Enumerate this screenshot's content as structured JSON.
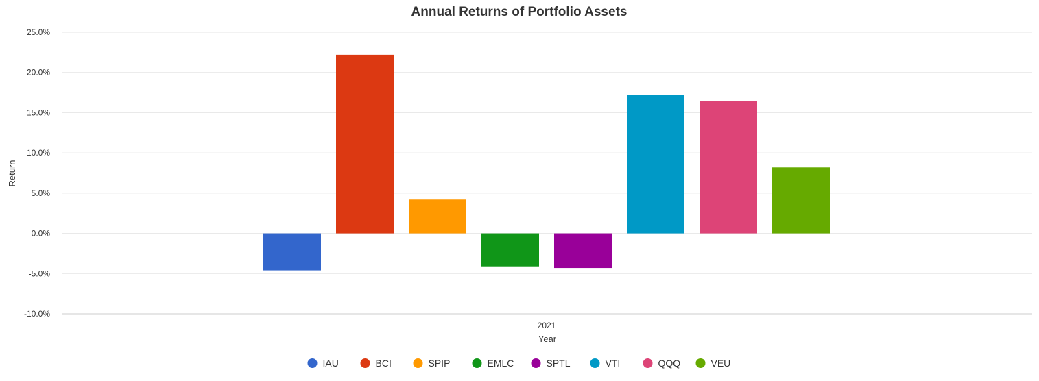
{
  "chart_data": {
    "type": "bar",
    "title": "Annual Returns of Portfolio Assets",
    "xlabel": "Year",
    "ylabel": "Return",
    "categories": [
      "2021"
    ],
    "series": [
      {
        "name": "IAU",
        "color": "#3366cc",
        "values": [
          -4.6
        ]
      },
      {
        "name": "BCI",
        "color": "#dc3912",
        "values": [
          22.2
        ]
      },
      {
        "name": "SPIP",
        "color": "#ff9900",
        "values": [
          4.2
        ]
      },
      {
        "name": "EMLC",
        "color": "#109618",
        "values": [
          -4.1
        ]
      },
      {
        "name": "SPTL",
        "color": "#990099",
        "values": [
          -4.3
        ]
      },
      {
        "name": "VTI",
        "color": "#0099c6",
        "values": [
          17.2
        ]
      },
      {
        "name": "QQQ",
        "color": "#dd4477",
        "values": [
          16.4
        ]
      },
      {
        "name": "VEU",
        "color": "#66aa00",
        "values": [
          8.2
        ]
      }
    ],
    "ylim": [
      -10,
      25
    ],
    "yticks": [
      25,
      20,
      15,
      10,
      5,
      0,
      -5,
      -10
    ],
    "ytick_labels": [
      "25.0%",
      "20.0%",
      "15.0%",
      "10.0%",
      "5.0%",
      "0.0%",
      "-5.0%",
      "-10.0%"
    ],
    "grid": true,
    "legend_position": "bottom"
  }
}
